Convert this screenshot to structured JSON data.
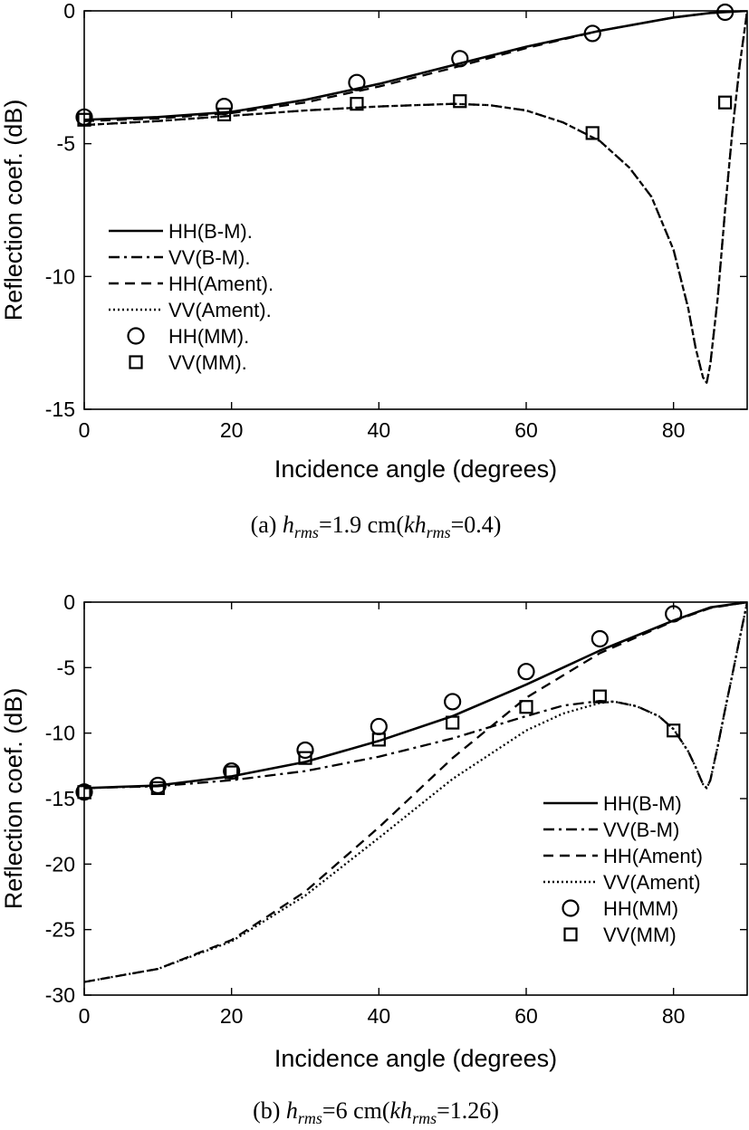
{
  "chart_data": [
    {
      "type": "line",
      "title": "",
      "xlabel": "Incidence angle (degrees)",
      "ylabel": "Reflection coef. (dB)",
      "xlim": [
        0,
        90
      ],
      "ylim": [
        -15,
        0
      ],
      "xticks": [
        0,
        20,
        40,
        60,
        80
      ],
      "yticks": [
        0,
        -5,
        -10,
        -15
      ],
      "grid": false,
      "legend_position": "middle-left",
      "caption": {
        "prefix": "(a)",
        "h": "h",
        "rms": "rms",
        "eq": "=1.9  cm(",
        "kh": "kh",
        "rms2": "rms",
        "suffix": "=0.4)"
      },
      "series": [
        {
          "name": "HH(B-M).",
          "style": "solid",
          "x": [
            0,
            10,
            20,
            30,
            40,
            50,
            60,
            70,
            80,
            85,
            90
          ],
          "y": [
            -4.1,
            -4.0,
            -3.8,
            -3.35,
            -2.75,
            -2.05,
            -1.35,
            -0.75,
            -0.25,
            -0.08,
            0
          ]
        },
        {
          "name": "VV(B-M).",
          "style": "dashdot",
          "x": [
            0,
            10,
            20,
            30,
            40,
            50,
            55,
            60,
            65,
            70,
            74,
            77,
            80,
            82,
            83,
            84,
            84.5,
            85,
            86,
            87,
            88,
            89,
            90
          ],
          "y": [
            -4.3,
            -4.15,
            -3.95,
            -3.75,
            -3.6,
            -3.5,
            -3.55,
            -3.75,
            -4.2,
            -4.9,
            -5.9,
            -7.0,
            -9.0,
            -11.2,
            -12.7,
            -13.8,
            -14.0,
            -13.3,
            -10.8,
            -7.5,
            -4.5,
            -2.0,
            0
          ]
        },
        {
          "name": "HH(Ament).",
          "style": "dashed",
          "x": [
            0,
            10,
            20,
            30,
            40,
            50,
            60,
            70,
            80,
            85,
            90
          ],
          "y": [
            -4.15,
            -4.05,
            -3.85,
            -3.45,
            -2.85,
            -2.15,
            -1.4,
            -0.75,
            -0.25,
            -0.08,
            0
          ]
        },
        {
          "name": "VV(Ament).",
          "style": "dotted",
          "x": [
            0,
            10,
            20,
            30,
            40,
            50,
            55,
            60,
            65,
            70,
            74,
            77,
            80,
            82,
            83,
            84,
            84.5,
            85,
            86,
            87,
            88,
            89,
            90
          ],
          "y": [
            -4.3,
            -4.15,
            -3.95,
            -3.75,
            -3.6,
            -3.5,
            -3.55,
            -3.75,
            -4.2,
            -4.9,
            -5.9,
            -7.0,
            -9.0,
            -11.2,
            -12.7,
            -13.8,
            -14.0,
            -13.3,
            -10.8,
            -7.5,
            -4.5,
            -2.0,
            0
          ]
        },
        {
          "name": "HH(MM).",
          "style": "circle",
          "x": [
            0,
            19,
            37,
            51,
            69,
            87
          ],
          "y": [
            -4.0,
            -3.6,
            -2.7,
            -1.8,
            -0.85,
            -0.05
          ]
        },
        {
          "name": "VV(MM).",
          "style": "square",
          "x": [
            0,
            19,
            37,
            51,
            69,
            87
          ],
          "y": [
            -4.1,
            -3.9,
            -3.5,
            -3.4,
            -4.6,
            -3.45
          ]
        }
      ]
    },
    {
      "type": "line",
      "title": "",
      "xlabel": "Incidence angle (degrees)",
      "ylabel": "Reflection coef. (dB)",
      "xlim": [
        0,
        90
      ],
      "ylim": [
        -30,
        0
      ],
      "xticks": [
        0,
        20,
        40,
        60,
        80
      ],
      "yticks": [
        0,
        -5,
        -10,
        -15,
        -20,
        -25,
        -30
      ],
      "grid": false,
      "legend_position": "bottom-right",
      "caption": {
        "prefix": "(b)",
        "h": "h",
        "rms": "rms",
        "eq": "=6  cm(",
        "kh": "kh",
        "rms2": "rms",
        "suffix": "=1.26)"
      },
      "series": [
        {
          "name": "HH(B-M)",
          "style": "solid",
          "x": [
            0,
            10,
            20,
            30,
            40,
            50,
            60,
            70,
            80,
            85,
            90
          ],
          "y": [
            -14.2,
            -14.0,
            -13.3,
            -12.2,
            -10.6,
            -8.7,
            -6.3,
            -3.7,
            -1.4,
            -0.4,
            0
          ]
        },
        {
          "name": "VV(B-M)",
          "style": "dashdot",
          "x": [
            0,
            10,
            20,
            30,
            40,
            50,
            60,
            65,
            70,
            72,
            75,
            78,
            80,
            82,
            83,
            84,
            84.5,
            85,
            86,
            87,
            88,
            89,
            90
          ],
          "y": [
            -14.2,
            -14.05,
            -13.6,
            -12.9,
            -11.8,
            -10.4,
            -8.7,
            -7.9,
            -7.55,
            -7.6,
            -7.95,
            -8.7,
            -9.7,
            -11.4,
            -12.6,
            -13.9,
            -14.2,
            -13.6,
            -11.0,
            -8.2,
            -5.5,
            -2.7,
            0
          ]
        },
        {
          "name": "HH(Ament)",
          "style": "dashed",
          "x": [
            0,
            10,
            20,
            30,
            40,
            50,
            60,
            70,
            80,
            85,
            90
          ],
          "y": [
            -29.0,
            -28.0,
            -25.8,
            -22.1,
            -17.2,
            -11.9,
            -7.3,
            -3.9,
            -1.45,
            -0.45,
            0
          ]
        },
        {
          "name": "VV(Ament)",
          "style": "dotted",
          "x": [
            0,
            10,
            20,
            30,
            40,
            50,
            60,
            65,
            70,
            72,
            75,
            78,
            80,
            82,
            83,
            84,
            84.5,
            85,
            86,
            87,
            88,
            89,
            90
          ],
          "y": [
            -29.0,
            -28.0,
            -25.9,
            -22.4,
            -18.0,
            -13.5,
            -9.8,
            -8.5,
            -7.7,
            -7.6,
            -7.95,
            -8.7,
            -9.7,
            -11.4,
            -12.6,
            -13.9,
            -14.2,
            -13.6,
            -11.0,
            -8.2,
            -5.5,
            -2.7,
            0
          ]
        },
        {
          "name": "HH(MM)",
          "style": "circle",
          "x": [
            0,
            10,
            20,
            30,
            40,
            50,
            60,
            70,
            80
          ],
          "y": [
            -14.5,
            -14.0,
            -12.9,
            -11.3,
            -9.5,
            -7.6,
            -5.3,
            -2.8,
            -0.9
          ]
        },
        {
          "name": "VV(MM)",
          "style": "square",
          "x": [
            0,
            10,
            20,
            30,
            40,
            50,
            60,
            70,
            80
          ],
          "y": [
            -14.5,
            -14.2,
            -13.0,
            -11.9,
            -10.5,
            -9.2,
            -8.0,
            -7.2,
            -9.8
          ]
        }
      ]
    }
  ]
}
